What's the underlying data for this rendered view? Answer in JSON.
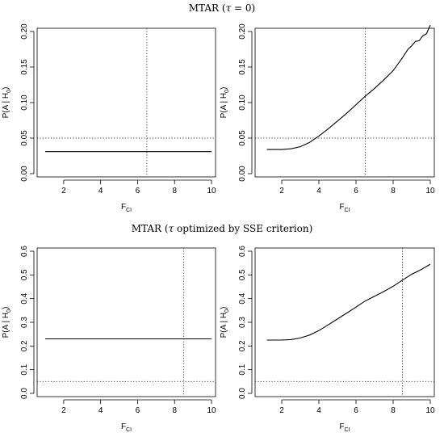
{
  "sections": [
    {
      "title_prefix": "MTAR (",
      "title_symbol": "τ",
      "title_suffix": " = 0)"
    },
    {
      "title_prefix": "MTAR (",
      "title_symbol": "τ",
      "title_suffix": " optimized by SSE criterion)"
    }
  ],
  "chart_data": [
    {
      "type": "line",
      "section": 0,
      "xlabel": "F",
      "xlabel_sub": "CI",
      "ylabel": "P(A | H",
      "ylabel_sub": "0",
      "ylabel_end": ")",
      "xlim": [
        1,
        10
      ],
      "ylim": [
        0,
        0.2
      ],
      "xticks": [
        2,
        4,
        6,
        8,
        10
      ],
      "yticks": [
        "0.00",
        "0.05",
        "0.10",
        "0.15",
        "0.20"
      ],
      "ref_h": 0.05,
      "ref_v": 6.5,
      "series": [
        {
          "x": [
            1,
            10
          ],
          "y": [
            0.031,
            0.031
          ]
        }
      ]
    },
    {
      "type": "line",
      "section": 0,
      "xlabel": "F",
      "xlabel_sub": "CI",
      "ylabel": "P(A | H",
      "ylabel_sub": "0",
      "ylabel_end": ")",
      "xlim": [
        1,
        10
      ],
      "ylim": [
        0,
        0.2
      ],
      "xticks": [
        2,
        4,
        6,
        8,
        10
      ],
      "yticks": [
        "0.00",
        "0.05",
        "0.10",
        "0.15",
        "0.20"
      ],
      "ref_h": 0.05,
      "ref_v": 6.5,
      "series": [
        {
          "x": [
            1.2,
            2.0,
            2.5,
            3.0,
            3.5,
            4.0,
            4.5,
            5.0,
            5.5,
            6.0,
            6.5,
            7.0,
            7.5,
            8.0,
            8.5,
            8.8,
            9.0,
            9.2,
            9.4,
            9.6,
            9.8,
            10.0
          ],
          "y": [
            0.034,
            0.034,
            0.035,
            0.038,
            0.044,
            0.053,
            0.063,
            0.074,
            0.085,
            0.097,
            0.109,
            0.12,
            0.132,
            0.145,
            0.163,
            0.175,
            0.18,
            0.186,
            0.187,
            0.194,
            0.197,
            0.209
          ]
        }
      ]
    },
    {
      "type": "line",
      "section": 1,
      "xlabel": "F",
      "xlabel_sub": "CI",
      "ylabel": "P(A | H",
      "ylabel_sub": "0",
      "ylabel_end": ")",
      "xlim": [
        1,
        10
      ],
      "ylim": [
        0,
        0.6
      ],
      "xticks": [
        2,
        4,
        6,
        8,
        10
      ],
      "yticks": [
        "0.0",
        "0.1",
        "0.2",
        "0.3",
        "0.4",
        "0.5",
        "0.6"
      ],
      "ref_h": 0.05,
      "ref_v": 8.5,
      "series": [
        {
          "x": [
            1,
            10
          ],
          "y": [
            0.23,
            0.23
          ]
        }
      ]
    },
    {
      "type": "line",
      "section": 1,
      "xlabel": "F",
      "xlabel_sub": "CI",
      "ylabel": "P(A | H",
      "ylabel_sub": "0",
      "ylabel_end": ")",
      "xlim": [
        1,
        10
      ],
      "ylim": [
        0,
        0.6
      ],
      "xticks": [
        2,
        4,
        6,
        8,
        10
      ],
      "yticks": [
        "0.0",
        "0.1",
        "0.2",
        "0.3",
        "0.4",
        "0.5",
        "0.6"
      ],
      "ref_h": 0.05,
      "ref_v": 8.5,
      "series": [
        {
          "x": [
            1.2,
            2.0,
            2.5,
            3.0,
            3.5,
            4.0,
            4.5,
            5.0,
            5.5,
            6.0,
            6.5,
            7.0,
            7.5,
            8.0,
            8.5,
            9.0,
            9.5,
            10.0
          ],
          "y": [
            0.225,
            0.225,
            0.227,
            0.234,
            0.246,
            0.265,
            0.289,
            0.314,
            0.339,
            0.364,
            0.39,
            0.41,
            0.43,
            0.452,
            0.478,
            0.503,
            0.522,
            0.545
          ]
        }
      ]
    }
  ]
}
